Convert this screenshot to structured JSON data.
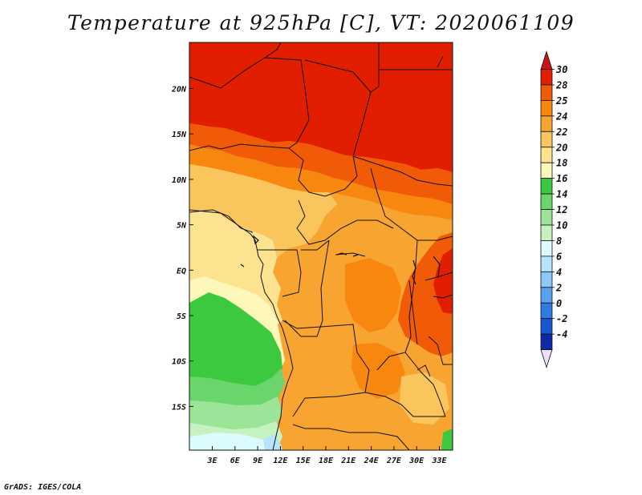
{
  "title": "Temperature at 925hPa [C], VT: 2020061109",
  "footer": "GrADS: IGES/COLA",
  "map": {
    "region": "Central Africa",
    "lon_ticks": [
      "3E",
      "6E",
      "9E",
      "12E",
      "15E",
      "18E",
      "21E",
      "24E",
      "27E",
      "30E",
      "33E"
    ],
    "lat_ticks": [
      "20N",
      "15N",
      "10N",
      "5N",
      "EQ",
      "5S",
      "10S",
      "15S"
    ]
  },
  "colorbar": {
    "labels": [
      "30",
      "28",
      "25",
      "24",
      "22",
      "20",
      "18",
      "16",
      "14",
      "12",
      "10",
      "8",
      "6",
      "4",
      "2",
      "0",
      "-2",
      "-4"
    ],
    "colors": {
      "top_arrow": "#c81414",
      "c28_30": "#e11f00",
      "c25_28": "#f15a07",
      "c24_25": "#f7870f",
      "c22_24": "#f8a431",
      "c20_22": "#fbc55d",
      "c18_20": "#fde28f",
      "c16_18": "#fdf8b9",
      "c14_16": "#3cc940",
      "c12_14": "#6ad56a",
      "c10_12": "#9ce497",
      "c8_10": "#c6f2bf",
      "c6_8": "#dbfbff",
      "c4_6": "#b5e4fd",
      "c2_4": "#8dc8f8",
      "c0_2": "#5ba2ee",
      "cm2_0": "#2b7ce3",
      "cm4_m2": "#1a56d0",
      "below": "#0c2aa6",
      "bottom_arrow": "#0a0a6e",
      "tail": "#e8e2fb"
    }
  }
}
